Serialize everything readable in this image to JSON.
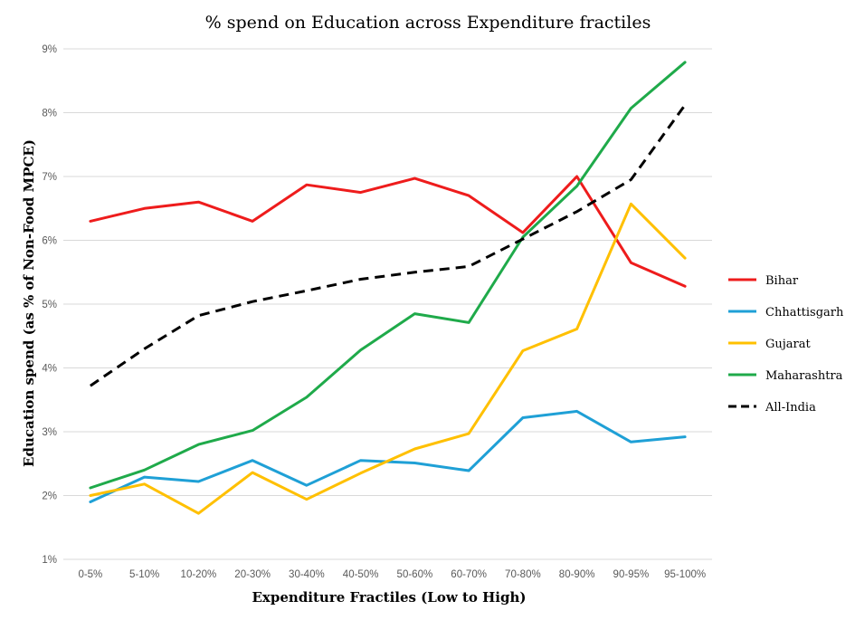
{
  "chart_data": {
    "type": "line",
    "title": "% spend on Education across Expenditure fractiles",
    "xlabel": "Expenditure Fractiles (Low to High)",
    "ylabel": "Education spend (as % of Non-Food MPCE)",
    "ylim": [
      1,
      9
    ],
    "y_ticks": [
      {
        "value": 1,
        "label": "1%"
      },
      {
        "value": 2,
        "label": "2%"
      },
      {
        "value": 3,
        "label": "3%"
      },
      {
        "value": 4,
        "label": "4%"
      },
      {
        "value": 5,
        "label": "5%"
      },
      {
        "value": 6,
        "label": "6%"
      },
      {
        "value": 7,
        "label": "7%"
      },
      {
        "value": 8,
        "label": "8%"
      },
      {
        "value": 9,
        "label": "9%"
      }
    ],
    "grid": true,
    "legend": "right",
    "categories": [
      "0-5%",
      "5-10%",
      "10-20%",
      "20-30%",
      "30-40%",
      "40-50%",
      "50-60%",
      "60-70%",
      "70-80%",
      "80-90%",
      "90-95%",
      "95-100%"
    ],
    "series": [
      {
        "name": "Bihar",
        "color": "#ee1c1c",
        "dash": false,
        "values": [
          6.3,
          6.5,
          6.6,
          6.3,
          6.87,
          6.75,
          6.97,
          6.7,
          6.12,
          7.0,
          5.65,
          5.28
        ]
      },
      {
        "name": "Chhattisgarh",
        "color": "#1fa0d6",
        "dash": false,
        "values": [
          1.9,
          2.29,
          2.22,
          2.55,
          2.16,
          2.55,
          2.51,
          2.39,
          3.22,
          3.32,
          2.84,
          2.92
        ]
      },
      {
        "name": "Gujarat",
        "color": "#ffc000",
        "dash": false,
        "values": [
          2.0,
          2.18,
          1.72,
          2.36,
          1.94,
          2.35,
          2.73,
          2.97,
          4.27,
          4.61,
          6.57,
          5.72
        ]
      },
      {
        "name": "Maharashtra",
        "color": "#1faa4a",
        "dash": false,
        "values": [
          2.12,
          2.4,
          2.8,
          3.02,
          3.54,
          4.28,
          4.85,
          4.71,
          6.05,
          6.85,
          8.07,
          8.79
        ]
      },
      {
        "name": "All-India",
        "color": "#000000",
        "dash": true,
        "values": [
          3.72,
          4.3,
          4.82,
          5.04,
          5.21,
          5.39,
          5.5,
          5.59,
          6.02,
          6.45,
          6.95,
          8.12
        ]
      }
    ]
  }
}
